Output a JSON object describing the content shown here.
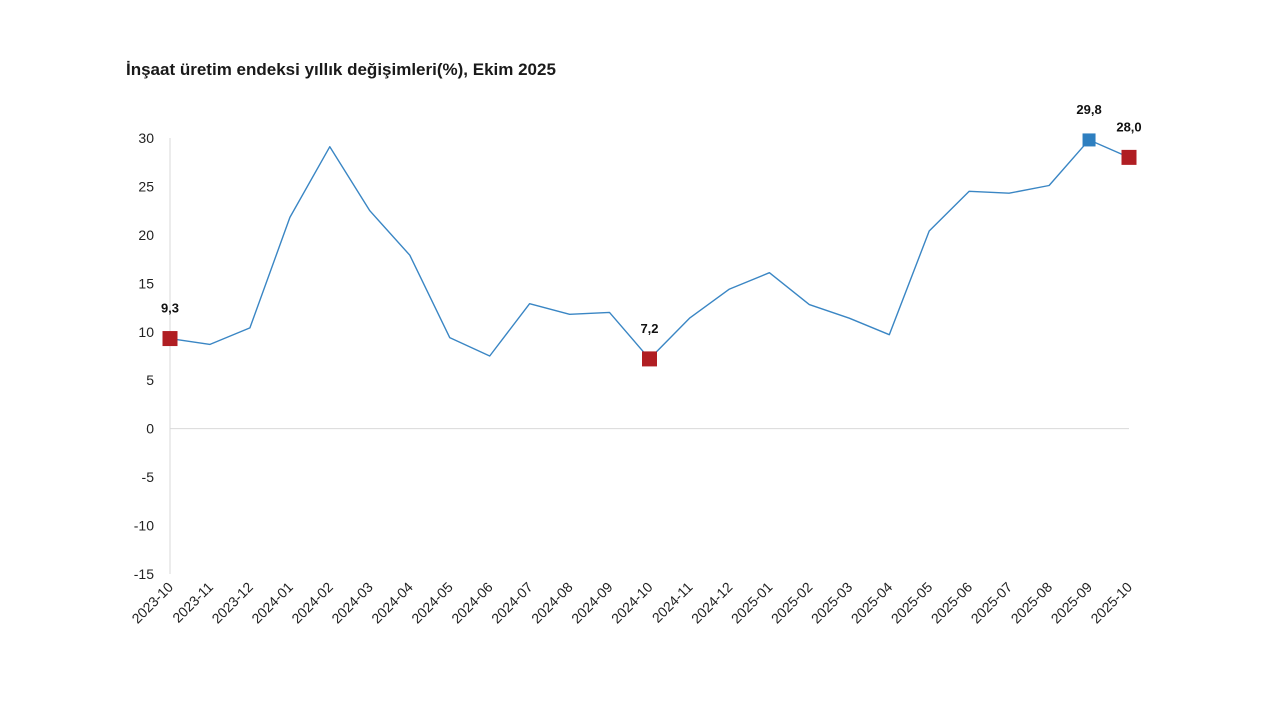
{
  "chart_data": {
    "type": "line",
    "title": "İnşaat üretim endeksi yıllık değişimleri(%), Ekim 2025",
    "xlabel": "",
    "ylabel": "",
    "ylim": [
      -15,
      30
    ],
    "yticks": [
      30,
      25,
      20,
      15,
      10,
      5,
      0,
      -5,
      -10,
      -15
    ],
    "grid": false,
    "legend": "none",
    "categories": [
      "2023-10",
      "2023-11",
      "2023-12",
      "2024-01",
      "2024-02",
      "2024-03",
      "2024-04",
      "2024-05",
      "2024-06",
      "2024-07",
      "2024-08",
      "2024-09",
      "2024-10",
      "2024-11",
      "2024-12",
      "2025-01",
      "2025-02",
      "2025-03",
      "2025-04",
      "2025-05",
      "2025-06",
      "2025-07",
      "2025-08",
      "2025-09",
      "2025-10"
    ],
    "series": [
      {
        "values": [
          9.3,
          8.7,
          10.4,
          21.8,
          29.1,
          22.5,
          17.9,
          9.4,
          7.5,
          12.9,
          11.8,
          12.0,
          7.2,
          11.4,
          14.4,
          16.1,
          12.8,
          11.4,
          9.7,
          20.4,
          24.5,
          24.3,
          25.1,
          29.8,
          28.0
        ],
        "color": "#3a86c4"
      }
    ],
    "highlighted_points": [
      {
        "category": "2023-10",
        "value": 9.3,
        "label": "9,3",
        "color": "#b01e23"
      },
      {
        "category": "2024-10",
        "value": 7.2,
        "label": "7,2",
        "color": "#b01e23"
      },
      {
        "category": "2025-09",
        "value": 29.8,
        "label": "29,8",
        "color": "#2e7fc0"
      },
      {
        "category": "2025-10",
        "value": 28.0,
        "label": "28,0",
        "color": "#b01e23"
      }
    ],
    "axis_color": "#d9d9d9"
  }
}
